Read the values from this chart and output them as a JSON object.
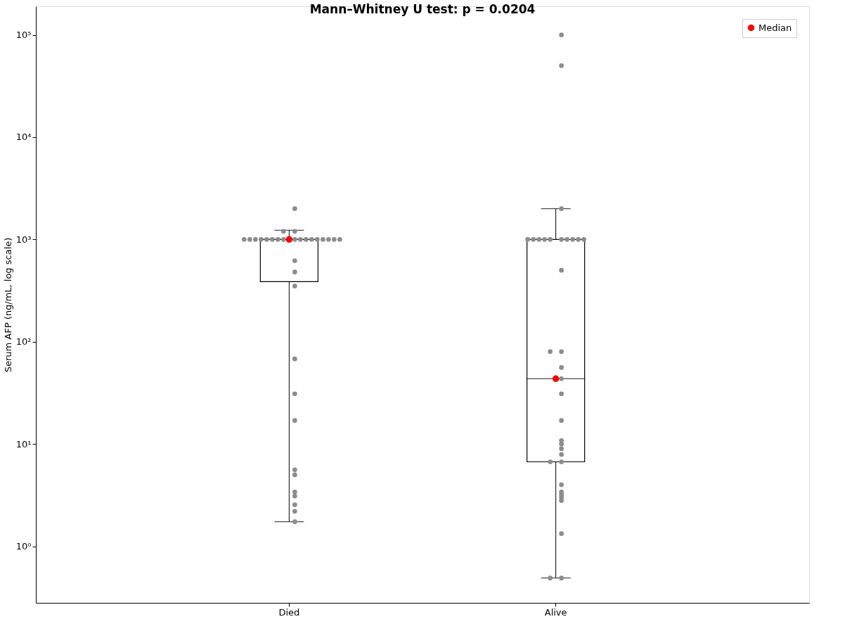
{
  "chart_data": {
    "type": "box",
    "title": "Mann–Whitney U test: p = 0.0204",
    "ylabel": "Serum AFP (ng/mL, log scale)",
    "categories": [
      "Died",
      "Alive"
    ],
    "log": "y",
    "grid": false,
    "legend": "top right",
    "marker": "circle",
    "ylim": [
      0.28,
      190000
    ],
    "yticks": [
      {
        "value": 1,
        "label": "10⁰"
      },
      {
        "value": 10,
        "label": "10¹"
      },
      {
        "value": 100,
        "label": "10²"
      },
      {
        "value": 1000,
        "label": "10³"
      },
      {
        "value": 10000,
        "label": "10⁴"
      },
      {
        "value": 100000,
        "label": "10⁵"
      }
    ],
    "series": [
      {
        "type": "box",
        "color": "#000000",
        "boxes": [
          {
            "low": 1.74,
            "q1": 387,
            "median": 1000,
            "q3": 1000,
            "high": 1230
          },
          {
            "low": 0.49,
            "q1": 6.7,
            "median": 43.5,
            "q3": 1000,
            "high": 2000
          }
        ]
      },
      {
        "type": "scatter",
        "color": "#8c8c8c",
        "x": [
          "Died",
          "Died",
          "Died",
          "Died",
          "Died",
          "Died",
          "Died",
          "Died",
          "Died",
          "Died",
          "Died",
          "Died",
          "Died",
          "Died",
          "Died",
          "Died",
          "Died",
          "Died",
          "Died",
          "Died",
          "Died",
          "Died",
          "Died",
          "Died",
          "Died",
          "Died",
          "Died",
          "Died",
          "Died",
          "Died",
          "Died",
          "Died",
          "Died",
          "Alive",
          "Alive",
          "Alive",
          "Alive",
          "Alive",
          "Alive",
          "Alive",
          "Alive",
          "Alive",
          "Alive",
          "Alive",
          "Alive",
          "Alive",
          "Alive",
          "Alive",
          "Alive",
          "Alive",
          "Alive",
          "Alive",
          "Alive",
          "Alive",
          "Alive",
          "Alive",
          "Alive",
          "Alive",
          "Alive",
          "Alive",
          "Alive",
          "Alive",
          "Alive",
          "Alive",
          "Alive",
          "Alive",
          "Alive"
        ],
        "values": [
          2000,
          1200,
          1200,
          1000,
          1000,
          1000,
          1000,
          1000,
          1000,
          1000,
          1000,
          1000,
          1000,
          1000,
          1000,
          1000,
          1000,
          1000,
          1000,
          1000,
          620,
          480,
          350,
          68,
          31,
          17,
          5.6,
          5.0,
          3.4,
          3.1,
          2.55,
          2.2,
          1.74,
          100000,
          50000,
          2000,
          1000,
          1000,
          1000,
          1000,
          1000,
          1000,
          1000,
          1000,
          1000,
          1000,
          500,
          80,
          80,
          56,
          43.5,
          31,
          17,
          10.8,
          10,
          9,
          7.9,
          6.7,
          6.7,
          4.0,
          3.4,
          3.2,
          3.0,
          2.8,
          1.33,
          0.49,
          0.49
        ]
      },
      {
        "type": "scatter",
        "name": "Median",
        "color": "#ff0000",
        "x": [
          "Died",
          "Alive"
        ],
        "values": [
          1000,
          43.5
        ]
      }
    ]
  }
}
